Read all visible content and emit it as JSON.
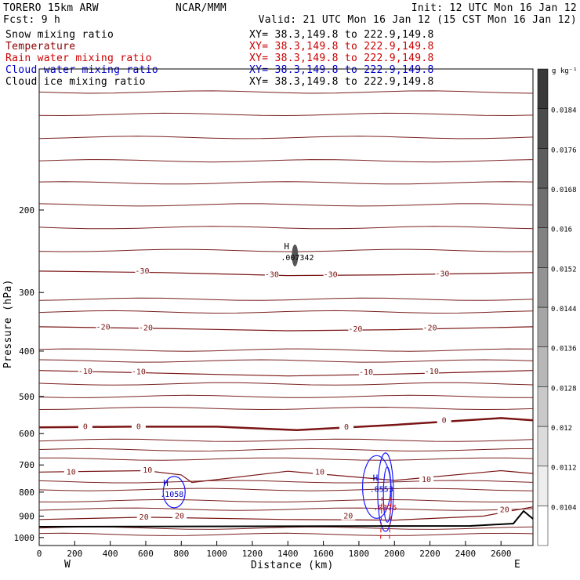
{
  "header": {
    "model": "TORERO  15km ARW",
    "center": "NCAR/MMM",
    "init": "Init: 12 UTC Mon 16 Jan 12",
    "fcst": "Fcst:    9 h",
    "valid": "Valid: 21 UTC Mon 16 Jan 12 (15 CST Mon 16 Jan 12)"
  },
  "fields": [
    {
      "label": "Snow mixing ratio",
      "color": "#000000",
      "xy": "XY=  38.3,149.8 to 222.9,149.8",
      "xy_color": "#000000"
    },
    {
      "label": "Temperature",
      "color": "#8b0000",
      "xy": "XY=  38.3,149.8 to 222.9,149.8",
      "xy_color": "#cc0000"
    },
    {
      "label": "Rain water mixing ratio",
      "color": "#cc0000",
      "xy": "XY=  38.3,149.8 to 222.9,149.8",
      "xy_color": "#cc0000"
    },
    {
      "label": "Cloud water mixing ratio",
      "color": "#0000cc",
      "xy": "XY=  38.3,149.8 to 222.9,149.8",
      "xy_color": "#0000cc"
    },
    {
      "label": "Cloud ice mixing ratio",
      "color": "#000000",
      "xy": "XY=  38.3,149.8 to 222.9,149.8",
      "xy_color": "#000000"
    }
  ],
  "chart_data": {
    "type": "cross-section",
    "xlabel": "Distance (km)",
    "ylabel": "Pressure (hPa)",
    "xlim": [
      0,
      2780
    ],
    "ylim": [
      1040,
      100
    ],
    "y_scale": "log",
    "xticks": [
      0,
      200,
      400,
      600,
      800,
      1000,
      1200,
      1400,
      1600,
      1800,
      2000,
      2200,
      2400,
      2600
    ],
    "yticks": [
      200,
      300,
      400,
      500,
      600,
      700,
      800,
      900,
      1000
    ],
    "west_label": "W",
    "east_label": "E",
    "colorbar_unit": "g kg⁻¹",
    "colorbar_ticks": [
      "0.0104",
      "0.0112",
      "0.012",
      "0.0128",
      "0.0136",
      "0.0144",
      "0.0152",
      "0.016",
      "0.0168",
      "0.0176",
      "0.0184"
    ],
    "temperature_isotherms": [
      {
        "value": -30,
        "x": [
          0,
          700,
          1400,
          2000,
          2780
        ],
        "p": [
          270,
          272,
          276,
          275,
          272
        ]
      },
      {
        "value": -20,
        "x": [
          0,
          700,
          1400,
          2000,
          2780
        ],
        "p": [
          355,
          358,
          362,
          360,
          355
        ]
      },
      {
        "value": -10,
        "x": [
          0,
          700,
          1400,
          2000,
          2780
        ],
        "p": [
          440,
          446,
          452,
          448,
          440
        ]
      },
      {
        "value": 0,
        "x": [
          0,
          500,
          1000,
          1450,
          2000,
          2600,
          2780
        ],
        "p": [
          582,
          580,
          580,
          590,
          575,
          556,
          562
        ]
      },
      {
        "value": 10,
        "x": [
          0,
          600,
          800,
          860,
          1400,
          2000,
          2600,
          2780
        ],
        "p": [
          725,
          720,
          735,
          763,
          722,
          755,
          720,
          730
        ]
      },
      {
        "value": 20,
        "x": [
          0,
          600,
          1400,
          2000,
          2500,
          2780
        ],
        "p": [
          915,
          905,
          915,
          918,
          900,
          860
        ]
      }
    ],
    "annotations": [
      {
        "text": "-30",
        "x": 580,
        "p": 270
      },
      {
        "text": "-30",
        "x": 1310,
        "p": 275
      },
      {
        "text": "-30",
        "x": 1640,
        "p": 275
      },
      {
        "text": "-30",
        "x": 2270,
        "p": 274
      },
      {
        "text": "-20",
        "x": 360,
        "p": 356
      },
      {
        "text": "-20",
        "x": 600,
        "p": 357
      },
      {
        "text": "-20",
        "x": 1780,
        "p": 359
      },
      {
        "text": "-20",
        "x": 2200,
        "p": 357
      },
      {
        "text": "-10",
        "x": 260,
        "p": 442
      },
      {
        "text": "-10",
        "x": 560,
        "p": 443
      },
      {
        "text": "-10",
        "x": 1840,
        "p": 444
      },
      {
        "text": "-10",
        "x": 2210,
        "p": 442
      },
      {
        "text": "0",
        "x": 260,
        "p": 580
      },
      {
        "text": "0",
        "x": 560,
        "p": 580
      },
      {
        "text": "0",
        "x": 1730,
        "p": 581
      },
      {
        "text": "0",
        "x": 2280,
        "p": 563
      },
      {
        "text": "10",
        "x": 180,
        "p": 725
      },
      {
        "text": "10",
        "x": 610,
        "p": 718
      },
      {
        "text": "10",
        "x": 1580,
        "p": 725
      },
      {
        "text": "10",
        "x": 2180,
        "p": 752
      },
      {
        "text": "20",
        "x": 590,
        "p": 905
      },
      {
        "text": "20",
        "x": 790,
        "p": 900
      },
      {
        "text": "20",
        "x": 1740,
        "p": 900
      },
      {
        "text": "20",
        "x": 2620,
        "p": 873
      }
    ],
    "markers": [
      {
        "label": "H",
        "value": ".007342",
        "x": 1440,
        "p": 250,
        "color": "#000000"
      },
      {
        "label": "H",
        "value": ".1058",
        "x": 760,
        "p": 800,
        "color": "#0000cc"
      },
      {
        "label": "H",
        "value": ".8553",
        "x": 1940,
        "p": 780,
        "color": "#0000cc"
      },
      {
        "label": "",
        "value": ".0376",
        "x": 1960,
        "p": 855,
        "color": "#cc0000"
      }
    ]
  }
}
